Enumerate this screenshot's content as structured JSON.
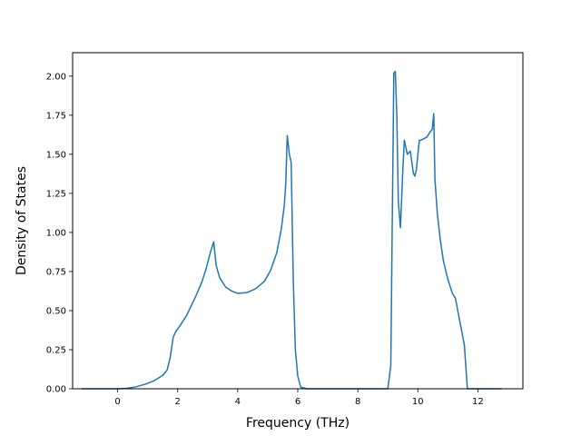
{
  "chart_data": {
    "type": "line",
    "title": "",
    "xlabel": "Frequency (THz)",
    "ylabel": "Density of States",
    "xlim": [
      -1.5,
      13.5
    ],
    "ylim": [
      0,
      2.15
    ],
    "xticks": [
      0,
      2,
      4,
      6,
      8,
      10,
      12
    ],
    "xtick_labels": [
      "0",
      "2",
      "4",
      "6",
      "8",
      "10",
      "12"
    ],
    "yticks": [
      0,
      0.25,
      0.5,
      0.75,
      1.0,
      1.25,
      1.5,
      1.75,
      2.0
    ],
    "ytick_labels": [
      "0.00",
      "0.25",
      "0.50",
      "0.75",
      "1.00",
      "1.25",
      "1.50",
      "1.75",
      "2.00"
    ],
    "grid": false,
    "line_color": "#1f77b4",
    "series": [
      {
        "x": [
          -1.2,
          0.0,
          0.3,
          0.6,
          0.9,
          1.2,
          1.5,
          1.65,
          1.75,
          1.85,
          1.95,
          2.1,
          2.3,
          2.45,
          2.6,
          2.8,
          2.95,
          3.1,
          3.2,
          3.28,
          3.4,
          3.6,
          3.8,
          4.0,
          4.3,
          4.6,
          4.9,
          5.1,
          5.3,
          5.45,
          5.55,
          5.6,
          5.65,
          5.72,
          5.78,
          5.85,
          5.92,
          6.0,
          6.1,
          6.3,
          7.0,
          8.0,
          9.0,
          9.1,
          9.15,
          9.2,
          9.25,
          9.3,
          9.35,
          9.42,
          9.5,
          9.55,
          9.65,
          9.75,
          9.8,
          9.85,
          9.9,
          9.95,
          10.05,
          10.1,
          10.2,
          10.3,
          10.4,
          10.48,
          10.53,
          10.57,
          10.65,
          10.75,
          10.85,
          11.0,
          11.15,
          11.25,
          11.35,
          11.45,
          11.55,
          11.65,
          12.0,
          12.8
        ],
        "y": [
          0.0,
          0.0,
          0.003,
          0.012,
          0.028,
          0.05,
          0.085,
          0.12,
          0.2,
          0.33,
          0.37,
          0.41,
          0.47,
          0.53,
          0.59,
          0.68,
          0.77,
          0.88,
          0.94,
          0.79,
          0.71,
          0.65,
          0.625,
          0.61,
          0.615,
          0.64,
          0.69,
          0.76,
          0.87,
          1.02,
          1.17,
          1.31,
          1.62,
          1.5,
          1.45,
          0.7,
          0.25,
          0.08,
          0.01,
          0.0,
          0.0,
          0.0,
          0.0,
          0.15,
          1.1,
          2.02,
          2.03,
          1.75,
          1.2,
          1.03,
          1.4,
          1.59,
          1.5,
          1.52,
          1.45,
          1.38,
          1.36,
          1.4,
          1.59,
          1.59,
          1.6,
          1.61,
          1.64,
          1.66,
          1.76,
          1.34,
          1.12,
          0.95,
          0.82,
          0.7,
          0.61,
          0.58,
          0.48,
          0.38,
          0.28,
          0.0,
          0.0,
          0.0
        ]
      }
    ]
  }
}
